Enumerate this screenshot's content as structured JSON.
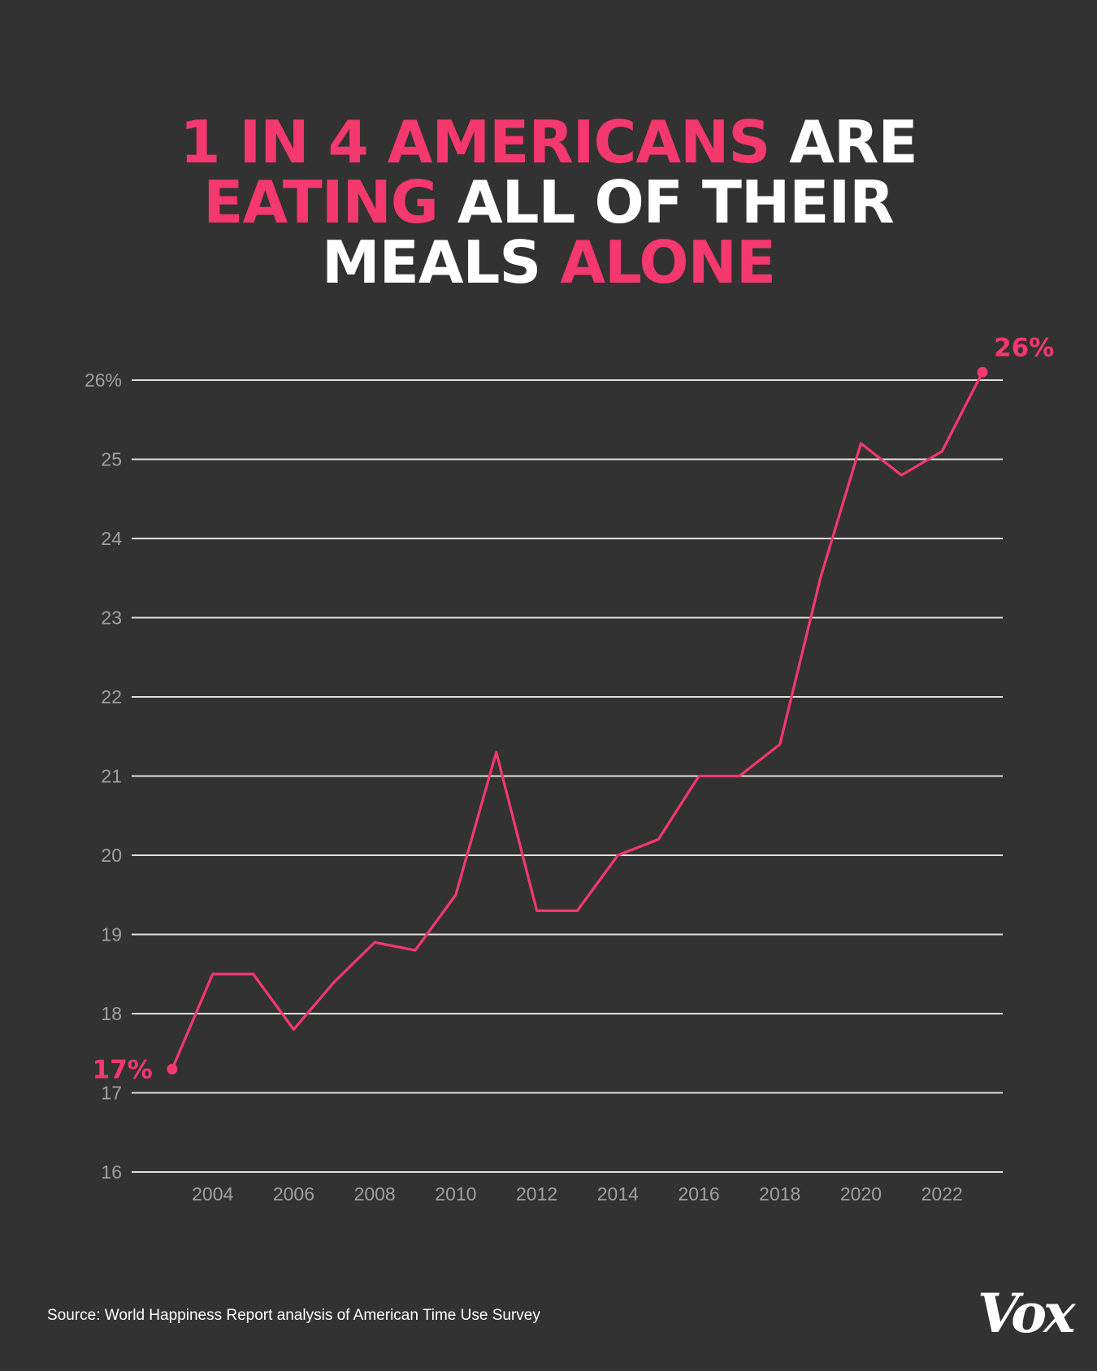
{
  "title_parts": [
    {
      "text": "1 IN 4 AMERICANS",
      "color": "#f5386e"
    },
    {
      "text": " ARE",
      "color": "#ffffff"
    },
    {
      "text": "EATING",
      "color": "#f5386e"
    },
    {
      "text": " ALL OF THEIR",
      "color": "#ffffff"
    },
    {
      "text": "MEALS",
      "color": "#ffffff"
    },
    {
      "text": " ALONE",
      "color": "#f5386e"
    }
  ],
  "source": "Source: World Happiness Report analysis of American Time Use Survey",
  "logo": "Vox",
  "colors": {
    "accent": "#f5386e",
    "background": "#323232",
    "grid": "#e0e0e0",
    "tick": "#a0a0a0"
  },
  "chart_data": {
    "type": "line",
    "x": [
      2003,
      2004,
      2005,
      2006,
      2007,
      2008,
      2009,
      2010,
      2011,
      2012,
      2013,
      2014,
      2015,
      2016,
      2017,
      2018,
      2019,
      2020,
      2021,
      2022,
      2023
    ],
    "series": [
      {
        "values": [
          17.3,
          18.5,
          18.5,
          17.8,
          18.4,
          18.9,
          18.8,
          19.5,
          21.3,
          19.3,
          19.3,
          20.0,
          20.2,
          21.0,
          21.0,
          21.4,
          23.5,
          25.2,
          24.8,
          25.1,
          26.1
        ]
      }
    ],
    "ylim": [
      16,
      26
    ],
    "y_ticks": [
      16,
      17,
      18,
      19,
      20,
      21,
      22,
      23,
      24,
      25,
      26
    ],
    "y_tick_labels": [
      "16",
      "17",
      "18",
      "19",
      "20",
      "21",
      "22",
      "23",
      "24",
      "25",
      "26%"
    ],
    "x_ticks": [
      2004,
      2006,
      2008,
      2010,
      2012,
      2014,
      2016,
      2018,
      2020,
      2022
    ],
    "x_tick_labels": [
      "2004",
      "2006",
      "2008",
      "2010",
      "2012",
      "2014",
      "2016",
      "2018",
      "2020",
      "2022"
    ],
    "annotations": [
      {
        "x": 2003,
        "y": 17.3,
        "text": "17%"
      },
      {
        "x": 2023,
        "y": 26.1,
        "text": "26%"
      }
    ],
    "grid": true,
    "legend": "none"
  }
}
